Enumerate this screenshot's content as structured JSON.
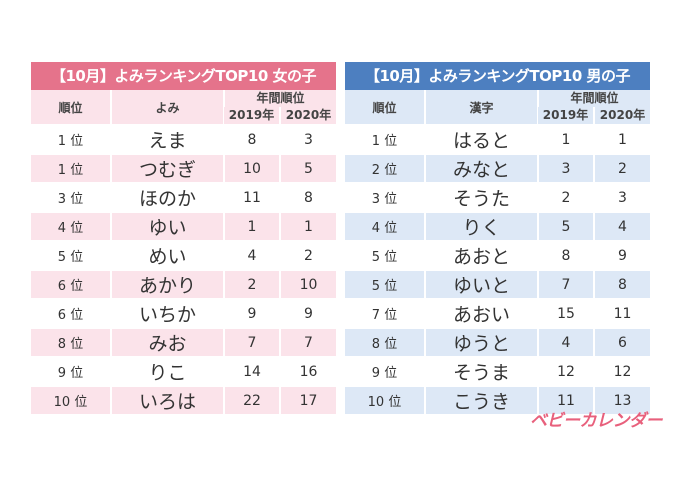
{
  "girls": {
    "title": "【10月】よみランキングTOP10 女の子",
    "header": {
      "rank": "順位",
      "name": "よみ",
      "annual": "年間順位",
      "y2019": "2019年",
      "y2020": "2020年"
    },
    "rows": [
      {
        "rank": "1 位",
        "name": "えま",
        "y2019": "8",
        "y2020": "3"
      },
      {
        "rank": "1 位",
        "name": "つむぎ",
        "y2019": "10",
        "y2020": "5"
      },
      {
        "rank": "3 位",
        "name": "ほのか",
        "y2019": "11",
        "y2020": "8"
      },
      {
        "rank": "4 位",
        "name": "ゆい",
        "y2019": "1",
        "y2020": "1"
      },
      {
        "rank": "5 位",
        "name": "めい",
        "y2019": "4",
        "y2020": "2"
      },
      {
        "rank": "6 位",
        "name": "あかり",
        "y2019": "2",
        "y2020": "10"
      },
      {
        "rank": "6 位",
        "name": "いちか",
        "y2019": "9",
        "y2020": "9"
      },
      {
        "rank": "8 位",
        "name": "みお",
        "y2019": "7",
        "y2020": "7"
      },
      {
        "rank": "9 位",
        "name": "りこ",
        "y2019": "14",
        "y2020": "16"
      },
      {
        "rank": "10 位",
        "name": "いろは",
        "y2019": "22",
        "y2020": "17"
      }
    ]
  },
  "boys": {
    "title": "【10月】よみランキングTOP10 男の子",
    "header": {
      "rank": "順位",
      "name": "漢字",
      "annual": "年間順位",
      "y2019": "2019年",
      "y2020": "2020年"
    },
    "rows": [
      {
        "rank": "1 位",
        "name": "はると",
        "y2019": "1",
        "y2020": "1"
      },
      {
        "rank": "2 位",
        "name": "みなと",
        "y2019": "3",
        "y2020": "2"
      },
      {
        "rank": "3 位",
        "name": "そうた",
        "y2019": "2",
        "y2020": "3"
      },
      {
        "rank": "4 位",
        "name": "りく",
        "y2019": "5",
        "y2020": "4"
      },
      {
        "rank": "5 位",
        "name": "あおと",
        "y2019": "8",
        "y2020": "9"
      },
      {
        "rank": "5 位",
        "name": "ゆいと",
        "y2019": "7",
        "y2020": "8"
      },
      {
        "rank": "7 位",
        "name": "あおい",
        "y2019": "15",
        "y2020": "11"
      },
      {
        "rank": "8 位",
        "name": "ゆうと",
        "y2019": "4",
        "y2020": "6"
      },
      {
        "rank": "9 位",
        "name": "そうま",
        "y2019": "12",
        "y2020": "12"
      },
      {
        "rank": "10 位",
        "name": "こうき",
        "y2019": "11",
        "y2020": "13"
      }
    ]
  },
  "logo": "ベビーカレンダー",
  "colors": {
    "girls_accent": "#e5738b",
    "boys_accent": "#4d7fc0"
  }
}
